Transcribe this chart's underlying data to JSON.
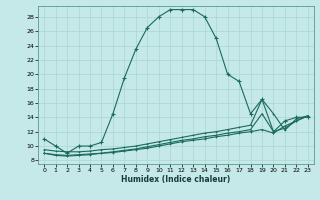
{
  "xlabel": "Humidex (Indice chaleur)",
  "background_color": "#c5e8e8",
  "grid_color": "#b0d8d8",
  "line_color": "#1a6b5a",
  "xlim": [
    -0.5,
    23.5
  ],
  "ylim": [
    7.5,
    29.5
  ],
  "xticks": [
    0,
    1,
    2,
    3,
    4,
    5,
    6,
    7,
    8,
    9,
    10,
    11,
    12,
    13,
    14,
    15,
    16,
    17,
    18,
    19,
    20,
    21,
    22,
    23
  ],
  "yticks": [
    8,
    10,
    12,
    14,
    16,
    18,
    20,
    22,
    24,
    26,
    28
  ],
  "main_x": [
    0,
    1,
    2,
    3,
    4,
    5,
    6,
    7,
    8,
    9,
    10,
    11,
    12,
    13,
    14,
    15,
    16,
    17,
    18,
    19,
    20,
    21,
    22,
    23
  ],
  "main_y": [
    11.0,
    10.0,
    9.0,
    10.0,
    10.0,
    10.5,
    14.5,
    19.5,
    23.5,
    26.5,
    28.0,
    29.0,
    29.0,
    29.0,
    28.0,
    25.0,
    20.0,
    19.0,
    14.5,
    16.5,
    12.0,
    13.5,
    14.0,
    14.0
  ],
  "line2_x": [
    0,
    1,
    2,
    3,
    4,
    5,
    6,
    7,
    8,
    9,
    10,
    11,
    12,
    13,
    14,
    15,
    16,
    17,
    18,
    19,
    20,
    21,
    22,
    23
  ],
  "line2_y": [
    9.5,
    9.3,
    9.2,
    9.2,
    9.3,
    9.5,
    9.6,
    9.8,
    10.0,
    10.3,
    10.6,
    10.9,
    11.2,
    11.5,
    11.8,
    12.0,
    12.3,
    12.6,
    12.9,
    16.5,
    14.5,
    12.2,
    13.8,
    14.2
  ],
  "line3_x": [
    0,
    1,
    2,
    3,
    4,
    5,
    6,
    7,
    8,
    9,
    10,
    11,
    12,
    13,
    14,
    15,
    16,
    17,
    18,
    19,
    20,
    21,
    22,
    23
  ],
  "line3_y": [
    9.0,
    8.8,
    8.7,
    8.8,
    8.9,
    9.0,
    9.2,
    9.4,
    9.6,
    9.9,
    10.2,
    10.5,
    10.8,
    11.0,
    11.3,
    11.5,
    11.8,
    12.0,
    12.3,
    14.5,
    12.0,
    12.5,
    13.5,
    14.2
  ],
  "line4_x": [
    0,
    1,
    2,
    3,
    4,
    5,
    6,
    7,
    8,
    9,
    10,
    11,
    12,
    13,
    14,
    15,
    16,
    17,
    18,
    19,
    20,
    21,
    22,
    23
  ],
  "line4_y": [
    9.0,
    8.7,
    8.6,
    8.7,
    8.8,
    9.0,
    9.1,
    9.3,
    9.5,
    9.7,
    10.0,
    10.3,
    10.6,
    10.8,
    11.0,
    11.3,
    11.5,
    11.8,
    12.0,
    12.3,
    11.8,
    12.8,
    13.5,
    14.2
  ]
}
